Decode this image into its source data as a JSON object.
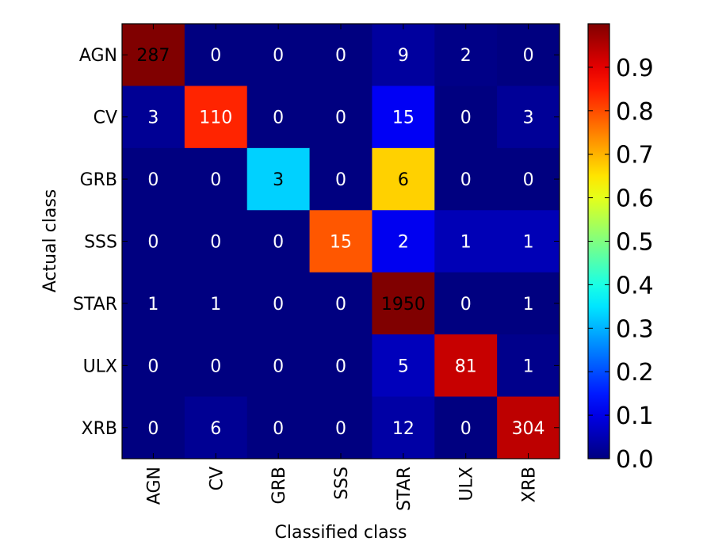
{
  "chart_data": {
    "type": "heatmap",
    "xlabel": "Classified class",
    "ylabel": "Actual class",
    "x_categories": [
      "AGN",
      "CV",
      "GRB",
      "SSS",
      "STAR",
      "ULX",
      "XRB"
    ],
    "y_categories": [
      "AGN",
      "CV",
      "GRB",
      "SSS",
      "STAR",
      "ULX",
      "XRB"
    ],
    "values": [
      [
        287,
        0,
        0,
        0,
        9,
        2,
        0
      ],
      [
        3,
        110,
        0,
        0,
        15,
        0,
        3
      ],
      [
        0,
        0,
        3,
        0,
        6,
        0,
        0
      ],
      [
        0,
        0,
        0,
        15,
        2,
        1,
        1
      ],
      [
        1,
        1,
        0,
        0,
        1950,
        0,
        1
      ],
      [
        0,
        0,
        0,
        0,
        5,
        81,
        1
      ],
      [
        0,
        6,
        0,
        0,
        12,
        0,
        304
      ]
    ],
    "color_fractions": [
      [
        1.0,
        0.0,
        0.0,
        0.0,
        0.03,
        0.007,
        0.0
      ],
      [
        0.02,
        0.84,
        0.0,
        0.0,
        0.115,
        0.0,
        0.023
      ],
      [
        0.0,
        0.0,
        0.33,
        0.0,
        0.67,
        0.0,
        0.0
      ],
      [
        0.0,
        0.0,
        0.0,
        0.79,
        0.11,
        0.053,
        0.053
      ],
      [
        0.0005,
        0.0005,
        0.0,
        0.0,
        1.0,
        0.0,
        0.0005
      ],
      [
        0.0,
        0.0,
        0.0,
        0.0,
        0.058,
        0.93,
        0.011
      ],
      [
        0.0,
        0.019,
        0.0,
        0.0,
        0.037,
        0.0,
        0.94
      ]
    ],
    "colormap": "jet",
    "colorbar": {
      "range": [
        0.0,
        1.0
      ],
      "ticks": [
        0.0,
        0.1,
        0.2,
        0.3,
        0.4,
        0.5,
        0.6,
        0.7,
        0.8,
        0.9
      ],
      "tick_labels": [
        "0.0",
        "0.1",
        "0.2",
        "0.3",
        "0.4",
        "0.5",
        "0.6",
        "0.7",
        "0.8",
        "0.9"
      ]
    },
    "annotation_colors": {
      "on_dark": "#ffffff",
      "on_light": "#000000"
    },
    "grid": false
  }
}
